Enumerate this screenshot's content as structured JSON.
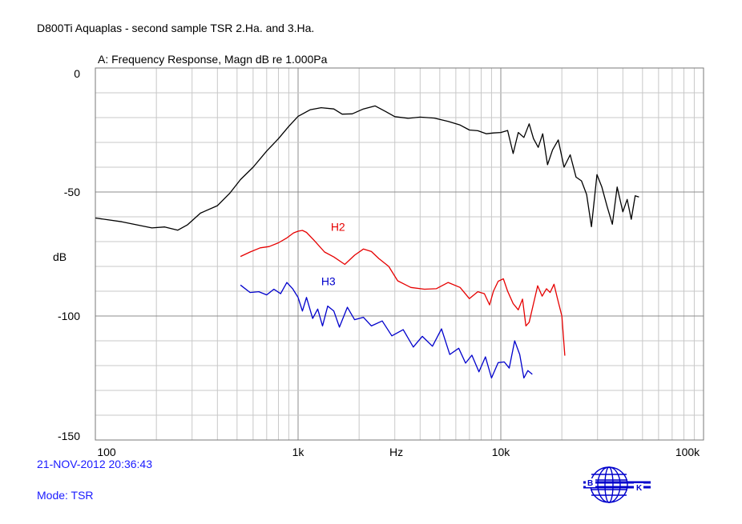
{
  "document": {
    "title": "D800Ti Aquaplas - second sample   TSR 2.Ha. and 3.Ha.",
    "timestamp": "21-NOV-2012 20:36:43",
    "mode": "Mode: TSR"
  },
  "logo": {
    "letters": [
      "B",
      "K"
    ],
    "color": "#0000cc"
  },
  "chart_data": {
    "type": "line",
    "title": "A: Frequency Response, Magn dB re 1.000Pa",
    "xlabel": "Hz",
    "ylabel": "dB",
    "xscale": "log",
    "xlim": [
      100,
      100000
    ],
    "ylim": [
      -150,
      0
    ],
    "grid": true,
    "x_tick_labels": [
      {
        "value": 100,
        "label": "100"
      },
      {
        "value": 1000,
        "label": "1k"
      },
      {
        "value": 10000,
        "label": "10k"
      },
      {
        "value": 100000,
        "label": "100k"
      }
    ],
    "y_tick_labels": [
      {
        "value": 0,
        "label": "0"
      },
      {
        "value": -50,
        "label": "-50"
      },
      {
        "value": -100,
        "label": "-100"
      },
      {
        "value": -150,
        "label": "-150"
      }
    ],
    "series": [
      {
        "color": "#000000",
        "x": [
          100,
          135,
          190,
          220,
          255,
          285,
          330,
          400,
          460,
          520,
          600,
          700,
          800,
          900,
          1000,
          1150,
          1300,
          1500,
          1650,
          1850,
          2100,
          2400,
          2700,
          3000,
          3500,
          4000,
          4700,
          5500,
          6300,
          7000,
          7700,
          8500,
          9200,
          10000,
          10800,
          11500,
          12200,
          13000,
          13800,
          14500,
          15300,
          16100,
          17000,
          18000,
          19200,
          20500,
          22000,
          23500,
          25000,
          26500,
          28000,
          29800,
          31500,
          33500,
          35500,
          37500,
          40000,
          42000,
          44000,
          46000,
          48000
        ],
        "y": [
          -60.5,
          -62,
          -64.5,
          -64.1,
          -65.4,
          -63.2,
          -58.5,
          -55.5,
          -50.5,
          -45,
          -40,
          -33.5,
          -28.5,
          -23.5,
          -19.5,
          -16.8,
          -16,
          -16.5,
          -18.6,
          -18.5,
          -16.5,
          -15.3,
          -17.5,
          -19.6,
          -20.3,
          -19.8,
          -20.2,
          -21.5,
          -23,
          -25,
          -25.3,
          -26.5,
          -26.2,
          -26,
          -25.2,
          -34.5,
          -26,
          -28,
          -22.5,
          -28.5,
          -32,
          -26.5,
          -39,
          -33,
          -29,
          -40,
          -35,
          -44,
          -45.5,
          -51,
          -64,
          -43,
          -48,
          -56,
          -63,
          -48,
          -58,
          -53,
          -61,
          -51.5,
          -52
        ]
      },
      {
        "name": "H2",
        "color": "#e60000",
        "x": [
          520,
          580,
          650,
          720,
          800,
          880,
          950,
          1000,
          1050,
          1100,
          1200,
          1350,
          1500,
          1700,
          1900,
          2100,
          2300,
          2500,
          2800,
          3100,
          3600,
          4200,
          4800,
          5500,
          6300,
          7000,
          7700,
          8300,
          8800,
          9200,
          9700,
          10300,
          10800,
          11500,
          12200,
          12800,
          13300,
          13800,
          14500,
          15200,
          16000,
          16800,
          17500,
          18300,
          19000,
          20000,
          20700
        ],
        "y": [
          -76,
          -74.2,
          -72.5,
          -72,
          -70.5,
          -68.5,
          -66.5,
          -65.8,
          -65.5,
          -66.3,
          -69.5,
          -74.2,
          -76.2,
          -79.2,
          -75.5,
          -73,
          -74,
          -76.8,
          -80,
          -85.8,
          -88.5,
          -89.2,
          -89,
          -86.5,
          -88.5,
          -93,
          -90.2,
          -91,
          -95.5,
          -90,
          -86,
          -85,
          -90,
          -95,
          -97.5,
          -93.2,
          -104,
          -102.5,
          -95,
          -87.8,
          -92,
          -89,
          -90.5,
          -87.2,
          -92.7,
          -100,
          -116
        ]
      },
      {
        "name": "H3",
        "color": "#0000cc",
        "x": [
          520,
          580,
          640,
          700,
          760,
          820,
          880,
          940,
          1000,
          1050,
          1100,
          1180,
          1250,
          1320,
          1400,
          1500,
          1600,
          1750,
          1900,
          2100,
          2300,
          2600,
          2900,
          3300,
          3700,
          4100,
          4600,
          5100,
          5600,
          6200,
          6700,
          7200,
          7800,
          8400,
          9000,
          9700,
          10400,
          11000,
          11700,
          12400,
          13000,
          13600,
          14300
        ],
        "y": [
          -87.5,
          -90.5,
          -90.2,
          -91.5,
          -89.2,
          -91,
          -86.5,
          -89,
          -92.5,
          -98,
          -92.5,
          -101,
          -97.2,
          -104,
          -96,
          -98,
          -104.5,
          -96.5,
          -101.5,
          -100.5,
          -104,
          -102,
          -108,
          -105.5,
          -112.5,
          -108.2,
          -112.2,
          -105.2,
          -115.5,
          -113,
          -119,
          -115.8,
          -122.5,
          -116.5,
          -125,
          -118.8,
          -118.5,
          -121,
          -110,
          -115.5,
          -125,
          -122,
          -123.5
        ]
      }
    ],
    "annotations": [
      {
        "text": "H2",
        "x": 1450,
        "y": -64,
        "color": "#e60000"
      },
      {
        "text": "H3",
        "x": 1300,
        "y": -86,
        "color": "#0000cc"
      }
    ]
  }
}
